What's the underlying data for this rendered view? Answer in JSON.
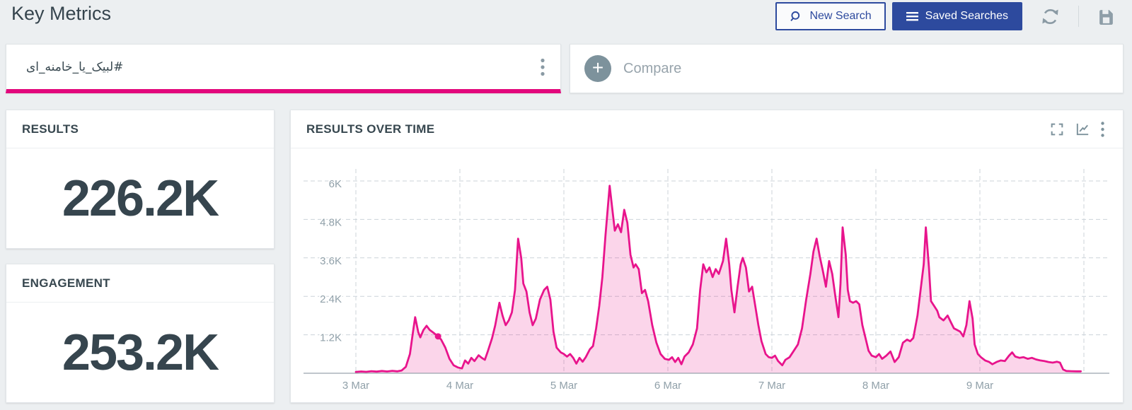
{
  "header": {
    "title": "Key Metrics",
    "new_search_label": "New Search",
    "saved_searches_label": "Saved Searches",
    "refresh_icon": "refresh",
    "save_icon": "save"
  },
  "query_bar": {
    "query_text": "#لبیک_یا_خامنه_ای",
    "menu_icon": "kebab-menu",
    "compare_label": "Compare",
    "add_icon": "plus"
  },
  "metrics": [
    {
      "label": "RESULTS",
      "value": "226.2K"
    },
    {
      "label": "ENGAGEMENT",
      "value": "253.2K"
    }
  ],
  "chart_panel": {
    "title": "RESULTS OVER TIME",
    "toolbar_icons": [
      "fullscreen",
      "line-chart",
      "kebab-menu"
    ]
  },
  "colors": {
    "accent_pink": "#e2077c",
    "chart_line": "#e8148c",
    "accent_blue": "#2d4a9e",
    "axis_text": "#90a0a9",
    "grid": "#ccd3d9"
  },
  "chart_data": {
    "type": "area",
    "title": "RESULTS OVER TIME",
    "xlabel": "",
    "ylabel": "",
    "ylim": [
      0,
      6600
    ],
    "grid": "dashed",
    "legend": "none",
    "line_color": "#e8148c",
    "fill_color": "#e8148c",
    "fill_opacity": 0.18,
    "x_ticks": [
      {
        "v": 3,
        "label": "3 Mar"
      },
      {
        "v": 4,
        "label": "4 Mar"
      },
      {
        "v": 5,
        "label": "5 Mar"
      },
      {
        "v": 6,
        "label": "6 Mar"
      },
      {
        "v": 7,
        "label": "7 Mar"
      },
      {
        "v": 8,
        "label": "8 Mar"
      },
      {
        "v": 9,
        "label": "9 Mar"
      },
      {
        "v": 10,
        "label": ""
      }
    ],
    "y_ticks": [
      {
        "v": 1200,
        "label": "1.2K"
      },
      {
        "v": 2400,
        "label": "2.4K"
      },
      {
        "v": 3600,
        "label": "3.6K"
      },
      {
        "v": 4800,
        "label": "4.8K"
      },
      {
        "v": 6000,
        "label": "6K"
      }
    ],
    "marker": {
      "x": 3.79,
      "y": 1150
    },
    "series": [
      {
        "name": "Results",
        "points": [
          [
            3.0,
            40
          ],
          [
            3.05,
            55
          ],
          [
            3.1,
            45
          ],
          [
            3.15,
            65
          ],
          [
            3.2,
            50
          ],
          [
            3.25,
            70
          ],
          [
            3.3,
            55
          ],
          [
            3.35,
            75
          ],
          [
            3.4,
            60
          ],
          [
            3.44,
            85
          ],
          [
            3.48,
            200
          ],
          [
            3.52,
            600
          ],
          [
            3.55,
            1300
          ],
          [
            3.57,
            1750
          ],
          [
            3.6,
            1280
          ],
          [
            3.62,
            1120
          ],
          [
            3.65,
            1350
          ],
          [
            3.68,
            1480
          ],
          [
            3.71,
            1350
          ],
          [
            3.74,
            1280
          ],
          [
            3.79,
            1150
          ],
          [
            3.82,
            1050
          ],
          [
            3.86,
            800
          ],
          [
            3.9,
            450
          ],
          [
            3.94,
            250
          ],
          [
            3.98,
            180
          ],
          [
            4.02,
            150
          ],
          [
            4.05,
            400
          ],
          [
            4.08,
            300
          ],
          [
            4.11,
            480
          ],
          [
            4.14,
            380
          ],
          [
            4.18,
            560
          ],
          [
            4.21,
            480
          ],
          [
            4.24,
            420
          ],
          [
            4.27,
            700
          ],
          [
            4.31,
            1100
          ],
          [
            4.34,
            1500
          ],
          [
            4.38,
            2200
          ],
          [
            4.41,
            1800
          ],
          [
            4.44,
            1500
          ],
          [
            4.47,
            1650
          ],
          [
            4.5,
            1900
          ],
          [
            4.53,
            2600
          ],
          [
            4.56,
            4200
          ],
          [
            4.59,
            3600
          ],
          [
            4.61,
            2800
          ],
          [
            4.64,
            2550
          ],
          [
            4.67,
            1900
          ],
          [
            4.7,
            1500
          ],
          [
            4.73,
            1700
          ],
          [
            4.77,
            2300
          ],
          [
            4.81,
            2600
          ],
          [
            4.84,
            2700
          ],
          [
            4.87,
            2300
          ],
          [
            4.9,
            1300
          ],
          [
            4.93,
            800
          ],
          [
            4.97,
            650
          ],
          [
            5.0,
            600
          ],
          [
            5.03,
            520
          ],
          [
            5.06,
            600
          ],
          [
            5.09,
            480
          ],
          [
            5.12,
            300
          ],
          [
            5.15,
            480
          ],
          [
            5.18,
            360
          ],
          [
            5.21,
            500
          ],
          [
            5.25,
            750
          ],
          [
            5.28,
            850
          ],
          [
            5.31,
            1400
          ],
          [
            5.34,
            2100
          ],
          [
            5.37,
            3000
          ],
          [
            5.4,
            4300
          ],
          [
            5.44,
            5850
          ],
          [
            5.47,
            5000
          ],
          [
            5.49,
            4450
          ],
          [
            5.52,
            4650
          ],
          [
            5.55,
            4400
          ],
          [
            5.58,
            5100
          ],
          [
            5.61,
            4700
          ],
          [
            5.64,
            3700
          ],
          [
            5.67,
            3300
          ],
          [
            5.69,
            3400
          ],
          [
            5.72,
            3250
          ],
          [
            5.75,
            2500
          ],
          [
            5.78,
            2600
          ],
          [
            5.81,
            2250
          ],
          [
            5.85,
            1500
          ],
          [
            5.89,
            950
          ],
          [
            5.93,
            600
          ],
          [
            5.97,
            450
          ],
          [
            6.01,
            420
          ],
          [
            6.04,
            500
          ],
          [
            6.07,
            350
          ],
          [
            6.1,
            480
          ],
          [
            6.13,
            280
          ],
          [
            6.16,
            520
          ],
          [
            6.2,
            650
          ],
          [
            6.24,
            900
          ],
          [
            6.28,
            1400
          ],
          [
            6.31,
            2600
          ],
          [
            6.34,
            3400
          ],
          [
            6.37,
            3150
          ],
          [
            6.4,
            3300
          ],
          [
            6.43,
            3000
          ],
          [
            6.46,
            3250
          ],
          [
            6.49,
            3100
          ],
          [
            6.53,
            3500
          ],
          [
            6.56,
            4200
          ],
          [
            6.59,
            3400
          ],
          [
            6.61,
            2600
          ],
          [
            6.64,
            1900
          ],
          [
            6.67,
            2700
          ],
          [
            6.7,
            3400
          ],
          [
            6.72,
            3600
          ],
          [
            6.75,
            3300
          ],
          [
            6.78,
            2550
          ],
          [
            6.81,
            2700
          ],
          [
            6.84,
            2100
          ],
          [
            6.87,
            1500
          ],
          [
            6.9,
            1000
          ],
          [
            6.94,
            600
          ],
          [
            6.97,
            500
          ],
          [
            7.0,
            480
          ],
          [
            7.03,
            550
          ],
          [
            7.06,
            380
          ],
          [
            7.1,
            250
          ],
          [
            7.13,
            420
          ],
          [
            7.17,
            500
          ],
          [
            7.21,
            700
          ],
          [
            7.25,
            900
          ],
          [
            7.29,
            1400
          ],
          [
            7.33,
            2300
          ],
          [
            7.37,
            3100
          ],
          [
            7.4,
            3800
          ],
          [
            7.43,
            4200
          ],
          [
            7.46,
            3650
          ],
          [
            7.49,
            3200
          ],
          [
            7.52,
            2700
          ],
          [
            7.55,
            3500
          ],
          [
            7.58,
            3100
          ],
          [
            7.61,
            2400
          ],
          [
            7.64,
            1750
          ],
          [
            7.66,
            2800
          ],
          [
            7.68,
            4550
          ],
          [
            7.71,
            3700
          ],
          [
            7.73,
            2600
          ],
          [
            7.75,
            2250
          ],
          [
            7.78,
            2200
          ],
          [
            7.81,
            2250
          ],
          [
            7.84,
            2150
          ],
          [
            7.87,
            1500
          ],
          [
            7.9,
            1100
          ],
          [
            7.93,
            700
          ],
          [
            7.96,
            550
          ],
          [
            8.0,
            500
          ],
          [
            8.03,
            600
          ],
          [
            8.06,
            450
          ],
          [
            8.1,
            550
          ],
          [
            8.14,
            680
          ],
          [
            8.18,
            350
          ],
          [
            8.22,
            500
          ],
          [
            8.26,
            950
          ],
          [
            8.3,
            1050
          ],
          [
            8.33,
            1000
          ],
          [
            8.36,
            1100
          ],
          [
            8.4,
            1800
          ],
          [
            8.43,
            2600
          ],
          [
            8.46,
            3400
          ],
          [
            8.48,
            4550
          ],
          [
            8.51,
            3300
          ],
          [
            8.53,
            2250
          ],
          [
            8.56,
            2100
          ],
          [
            8.59,
            1950
          ],
          [
            8.61,
            1750
          ],
          [
            8.65,
            1650
          ],
          [
            8.69,
            1800
          ],
          [
            8.72,
            1600
          ],
          [
            8.75,
            1400
          ],
          [
            8.78,
            1350
          ],
          [
            8.81,
            1300
          ],
          [
            8.84,
            1150
          ],
          [
            8.87,
            1500
          ],
          [
            8.9,
            2250
          ],
          [
            8.93,
            1700
          ],
          [
            8.95,
            900
          ],
          [
            8.98,
            600
          ],
          [
            9.01,
            500
          ],
          [
            9.05,
            400
          ],
          [
            9.09,
            350
          ],
          [
            9.12,
            280
          ],
          [
            9.16,
            350
          ],
          [
            9.2,
            400
          ],
          [
            9.24,
            380
          ],
          [
            9.28,
            550
          ],
          [
            9.31,
            650
          ],
          [
            9.34,
            520
          ],
          [
            9.38,
            480
          ],
          [
            9.42,
            500
          ],
          [
            9.46,
            450
          ],
          [
            9.5,
            480
          ],
          [
            9.54,
            430
          ],
          [
            9.58,
            400
          ],
          [
            9.62,
            380
          ],
          [
            9.66,
            350
          ],
          [
            9.7,
            330
          ],
          [
            9.74,
            360
          ],
          [
            9.77,
            330
          ],
          [
            9.8,
            120
          ],
          [
            9.83,
            70
          ],
          [
            9.88,
            65
          ],
          [
            9.93,
            60
          ],
          [
            9.97,
            60
          ]
        ]
      }
    ]
  }
}
